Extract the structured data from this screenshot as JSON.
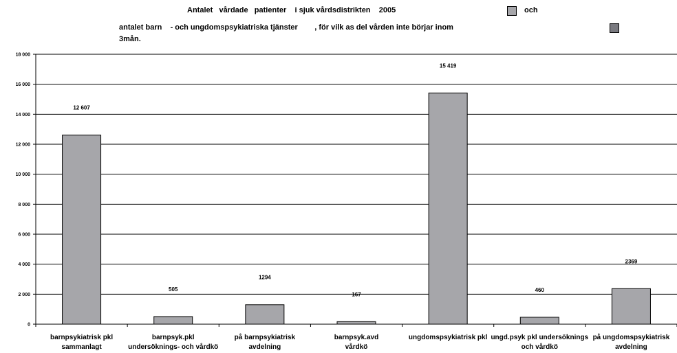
{
  "title": {
    "line1": "Antalet   vårdade   patienter    i sjuk vårdsdistrikten    2005",
    "line1_legend": "och",
    "line2": "antalet barn    - och ungdomspsykiatriska tjänster        , för vilk as del vården inte börjar inom",
    "line3": "3mån."
  },
  "legend": {
    "swatch1_color": "#a6a6aa",
    "swatch2_color": "#7a7a80"
  },
  "chart_data": {
    "type": "bar",
    "categories": [
      [
        "barnpsykiatrisk pkl",
        "sammanlagt"
      ],
      [
        "barnpsyk.pkl",
        "undersöknings- och vårdkö"
      ],
      [
        "på barnpsykiatrisk",
        "avdelning"
      ],
      [
        "barnpsyk.avd",
        "vårdkö"
      ],
      [
        "ungdomspsykiatrisk pkl"
      ],
      [
        "ungd.psyk pkl undersöknings",
        "och vårdkö"
      ],
      [
        "på ungdomspsykiatrisk",
        "avdelning"
      ]
    ],
    "values": [
      12607,
      505,
      1294,
      167,
      15419,
      460,
      2369
    ],
    "data_labels": [
      "12 607",
      "505",
      "1294",
      "167",
      "15 419",
      "460",
      "2369"
    ],
    "ylim": [
      0,
      18000
    ],
    "yticks": [
      0,
      2000,
      4000,
      6000,
      8000,
      10000,
      12000,
      14000,
      16000,
      18000
    ],
    "ytick_labels": [
      "0",
      "2 000",
      "4 000",
      "6 000",
      "8 000",
      "10 000",
      "12 000",
      "14 000",
      "16 000",
      "18 000"
    ],
    "grid": true,
    "bar_color": "#a6a6aa"
  }
}
